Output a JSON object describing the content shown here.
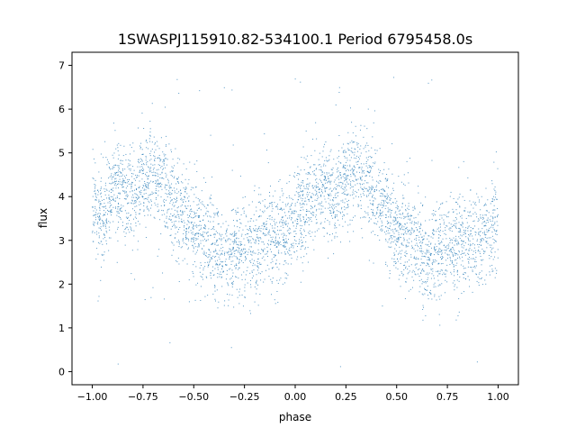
{
  "chart_data": {
    "type": "scatter",
    "title": "1SWASPJ115910.82-534100.1 Period 6795458.0s",
    "xlabel": "phase",
    "ylabel": "flux",
    "xlim": [
      -1.1,
      1.1
    ],
    "ylim": [
      -0.3,
      7.3
    ],
    "x_ticks": [
      -1.0,
      -0.75,
      -0.5,
      -0.25,
      0.0,
      0.25,
      0.5,
      0.75,
      1.0
    ],
    "x_tick_labels": [
      "−1.00",
      "−0.75",
      "−0.50",
      "−0.25",
      "0.00",
      "0.25",
      "0.50",
      "0.75",
      "1.00"
    ],
    "y_ticks": [
      0,
      1,
      2,
      3,
      4,
      5,
      6,
      7
    ],
    "y_tick_labels": [
      "0",
      "1",
      "2",
      "3",
      "4",
      "5",
      "6",
      "7"
    ],
    "grid": false,
    "legend": "none",
    "marker_color": "#1f77b4",
    "trend_phase": [
      -1.0,
      -0.95,
      -0.9,
      -0.85,
      -0.8,
      -0.75,
      -0.7,
      -0.65,
      -0.6,
      -0.55,
      -0.5,
      -0.45,
      -0.4,
      -0.35,
      -0.3,
      -0.25,
      -0.2,
      -0.15,
      -0.1,
      -0.05,
      0.0,
      0.05,
      0.1,
      0.15,
      0.2,
      0.25,
      0.3,
      0.35,
      0.4,
      0.45,
      0.5,
      0.55,
      0.6,
      0.65,
      0.7,
      0.75,
      0.8,
      0.85,
      0.9,
      0.95,
      1.0
    ],
    "trend_flux": [
      3.6,
      3.6,
      4.1,
      4.3,
      3.9,
      4.4,
      4.5,
      4.4,
      3.9,
      3.6,
      3.3,
      3.1,
      2.8,
      2.6,
      2.7,
      2.8,
      2.9,
      3.0,
      3.0,
      3.2,
      3.5,
      3.8,
      4.1,
      4.3,
      3.9,
      4.4,
      4.5,
      4.4,
      3.9,
      3.6,
      3.3,
      3.1,
      2.8,
      2.6,
      2.7,
      2.8,
      2.9,
      3.0,
      3.0,
      3.2,
      3.5
    ],
    "spread": 0.55,
    "point_count": 4200
  }
}
